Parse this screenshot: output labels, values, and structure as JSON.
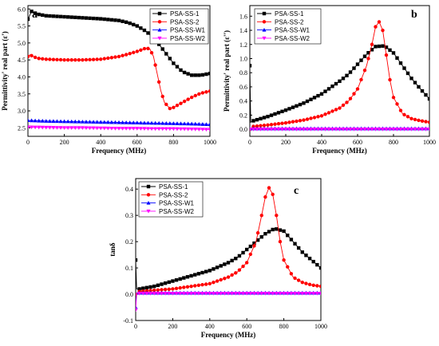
{
  "colors": {
    "PSA-SS-1": "#000000",
    "PSA-SS-2": "#ff0000",
    "PSA-SS-W1": "#0000ff",
    "PSA-SS-W2": "#ff00ff"
  },
  "chart_data": [
    {
      "panel": "a",
      "type": "line",
      "xlabel": "Frequency (MHz)",
      "ylabel": "Permittivity' real part (ε')",
      "xlim": [
        0,
        1000
      ],
      "ylim": [
        2.25,
        6.1
      ],
      "xticks": [
        0,
        200,
        400,
        600,
        800,
        1000
      ],
      "yticks": [
        2.5,
        3.0,
        3.5,
        4.0,
        4.5,
        5.0,
        5.5,
        6.0
      ],
      "legend_position": "top-right",
      "series": [
        {
          "name": "PSA-SS-1",
          "marker": "square",
          "x": [
            0,
            20,
            50,
            100,
            200,
            300,
            400,
            500,
            550,
            600,
            650,
            700,
            750,
            800,
            850,
            900,
            950,
            1000
          ],
          "y": [
            5.7,
            5.93,
            5.85,
            5.8,
            5.77,
            5.74,
            5.71,
            5.66,
            5.6,
            5.5,
            5.34,
            5.1,
            4.75,
            4.4,
            4.15,
            4.05,
            4.05,
            4.1
          ]
        },
        {
          "name": "PSA-SS-2",
          "marker": "circle",
          "x": [
            0,
            10,
            50,
            100,
            200,
            300,
            400,
            500,
            550,
            600,
            650,
            670,
            690,
            710,
            730,
            750,
            780,
            800,
            850,
            900,
            950,
            1000
          ],
          "y": [
            4.6,
            4.65,
            4.55,
            4.52,
            4.5,
            4.5,
            4.52,
            4.6,
            4.67,
            4.75,
            4.85,
            4.82,
            4.6,
            4.1,
            3.6,
            3.25,
            3.07,
            3.1,
            3.25,
            3.4,
            3.52,
            3.58
          ]
        },
        {
          "name": "PSA-SS-W1",
          "marker": "triangle-up",
          "x": [
            0,
            100,
            200,
            300,
            400,
            500,
            600,
            700,
            800,
            900,
            1000
          ],
          "y": [
            2.72,
            2.7,
            2.69,
            2.68,
            2.67,
            2.66,
            2.65,
            2.64,
            2.63,
            2.62,
            2.6
          ]
        },
        {
          "name": "PSA-SS-W2",
          "marker": "triangle-down",
          "x": [
            0,
            100,
            200,
            300,
            400,
            500,
            600,
            700,
            800,
            900,
            1000
          ],
          "y": [
            2.52,
            2.51,
            2.5,
            2.5,
            2.49,
            2.48,
            2.48,
            2.47,
            2.47,
            2.46,
            2.45
          ]
        }
      ]
    },
    {
      "panel": "b",
      "type": "line",
      "xlabel": "Frequency (MHz)",
      "ylabel": "Permittivity' real part (ε'')",
      "xlim": [
        0,
        1000
      ],
      "ylim": [
        -0.1,
        1.75
      ],
      "xticks": [
        0,
        200,
        400,
        600,
        800,
        1000
      ],
      "yticks": [
        0.0,
        0.2,
        0.4,
        0.6,
        0.8,
        1.0,
        1.2,
        1.4,
        1.6
      ],
      "legend_position": "top-left",
      "series": [
        {
          "name": "PSA-SS-1",
          "marker": "square",
          "x": [
            0,
            5,
            20,
            100,
            200,
            300,
            400,
            500,
            550,
            600,
            650,
            700,
            750,
            800,
            850,
            900,
            950,
            1000
          ],
          "y": [
            0.9,
            0.1,
            0.12,
            0.18,
            0.27,
            0.37,
            0.5,
            0.68,
            0.78,
            0.92,
            1.06,
            1.17,
            1.18,
            1.08,
            0.9,
            0.72,
            0.57,
            0.43
          ]
        },
        {
          "name": "PSA-SS-2",
          "marker": "circle",
          "x": [
            0,
            20,
            100,
            200,
            300,
            400,
            500,
            550,
            600,
            650,
            680,
            700,
            720,
            740,
            760,
            780,
            800,
            850,
            900,
            950,
            1000
          ],
          "y": [
            0.0,
            0.04,
            0.06,
            0.09,
            0.13,
            0.19,
            0.3,
            0.4,
            0.57,
            0.9,
            1.2,
            1.45,
            1.52,
            1.4,
            1.05,
            0.7,
            0.45,
            0.22,
            0.15,
            0.12,
            0.1
          ]
        },
        {
          "name": "PSA-SS-W1",
          "marker": "triangle-up",
          "x": [
            0,
            100,
            200,
            300,
            400,
            500,
            600,
            700,
            800,
            900,
            1000
          ],
          "y": [
            0.01,
            0.01,
            0.01,
            0.01,
            0.01,
            0.01,
            0.01,
            0.01,
            0.01,
            0.01,
            0.01
          ]
        },
        {
          "name": "PSA-SS-W2",
          "marker": "triangle-down",
          "x": [
            0,
            100,
            200,
            300,
            400,
            500,
            600,
            700,
            800,
            900,
            1000
          ],
          "y": [
            0.0,
            0.0,
            0.0,
            0.0,
            0.0,
            0.0,
            0.0,
            0.0,
            0.0,
            0.0,
            0.0
          ]
        }
      ]
    },
    {
      "panel": "c",
      "type": "line",
      "xlabel": "Frequency (MHz)",
      "ylabel": "tanδ",
      "xlim": [
        0,
        1000
      ],
      "ylim": [
        -0.1,
        0.44
      ],
      "xticks": [
        0,
        200,
        400,
        600,
        800,
        1000
      ],
      "yticks": [
        -0.1,
        0.0,
        0.1,
        0.2,
        0.3,
        0.4
      ],
      "legend_position": "top-left",
      "series": [
        {
          "name": "PSA-SS-1",
          "marker": "square",
          "x": [
            0,
            5,
            20,
            100,
            200,
            300,
            400,
            500,
            550,
            600,
            650,
            700,
            750,
            800,
            850,
            900,
            950,
            1000
          ],
          "y": [
            0.13,
            0.02,
            0.02,
            0.03,
            0.05,
            0.07,
            0.09,
            0.12,
            0.14,
            0.17,
            0.2,
            0.23,
            0.25,
            0.24,
            0.2,
            0.16,
            0.13,
            0.1
          ]
        },
        {
          "name": "PSA-SS-2",
          "marker": "circle",
          "x": [
            0,
            20,
            100,
            200,
            300,
            400,
            500,
            550,
            600,
            650,
            680,
            700,
            720,
            740,
            760,
            780,
            800,
            850,
            900,
            950,
            1000
          ],
          "y": [
            0.0,
            0.01,
            0.015,
            0.02,
            0.03,
            0.04,
            0.065,
            0.085,
            0.12,
            0.2,
            0.3,
            0.37,
            0.405,
            0.38,
            0.3,
            0.2,
            0.13,
            0.065,
            0.045,
            0.035,
            0.03
          ]
        },
        {
          "name": "PSA-SS-W1",
          "marker": "triangle-up",
          "x": [
            0,
            5,
            100,
            200,
            300,
            400,
            500,
            600,
            700,
            800,
            900,
            1000
          ],
          "y": [
            -0.05,
            0.005,
            0.005,
            0.005,
            0.005,
            0.005,
            0.005,
            0.005,
            0.005,
            0.005,
            0.005,
            0.005
          ]
        },
        {
          "name": "PSA-SS-W2",
          "marker": "triangle-down",
          "x": [
            0,
            5,
            100,
            200,
            300,
            400,
            500,
            600,
            700,
            800,
            900,
            1000
          ],
          "y": [
            -0.06,
            0.003,
            0.003,
            0.003,
            0.003,
            0.003,
            0.003,
            0.003,
            0.003,
            0.003,
            0.003,
            0.003
          ]
        }
      ]
    }
  ]
}
